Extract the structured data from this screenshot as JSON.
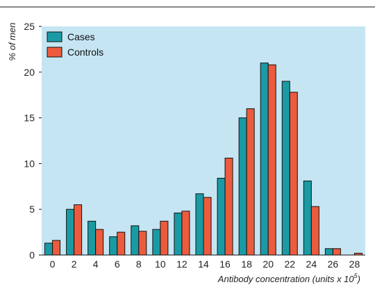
{
  "colors": {
    "plot_bg": "#c5e5f3",
    "cases": "#1a9ba4",
    "controls": "#ec5b3d",
    "outline": "#111111"
  },
  "chart_data": {
    "type": "bar",
    "xlabel_main": "Antibody concentration (units x 10",
    "xlabel_exp": "5",
    "xlabel_close": ")",
    "ylabel": "% of men",
    "ylim": [
      0,
      25
    ],
    "yticks": [
      0,
      5,
      10,
      15,
      20,
      25
    ],
    "categories": [
      "0",
      "2",
      "4",
      "6",
      "8",
      "10",
      "12",
      "14",
      "16",
      "18",
      "20",
      "22",
      "24",
      "26",
      "28"
    ],
    "legend_position": "top-left",
    "grid": false,
    "series": [
      {
        "name": "Cases",
        "values": [
          1.3,
          5.0,
          3.7,
          2.0,
          3.2,
          2.8,
          4.6,
          6.7,
          8.4,
          15.0,
          21.0,
          19.0,
          8.1,
          0.7,
          0
        ]
      },
      {
        "name": "Controls",
        "values": [
          1.6,
          5.5,
          2.8,
          2.5,
          2.6,
          3.7,
          4.8,
          6.3,
          10.6,
          16.0,
          20.8,
          17.8,
          5.3,
          0.7,
          0.2
        ]
      }
    ]
  }
}
